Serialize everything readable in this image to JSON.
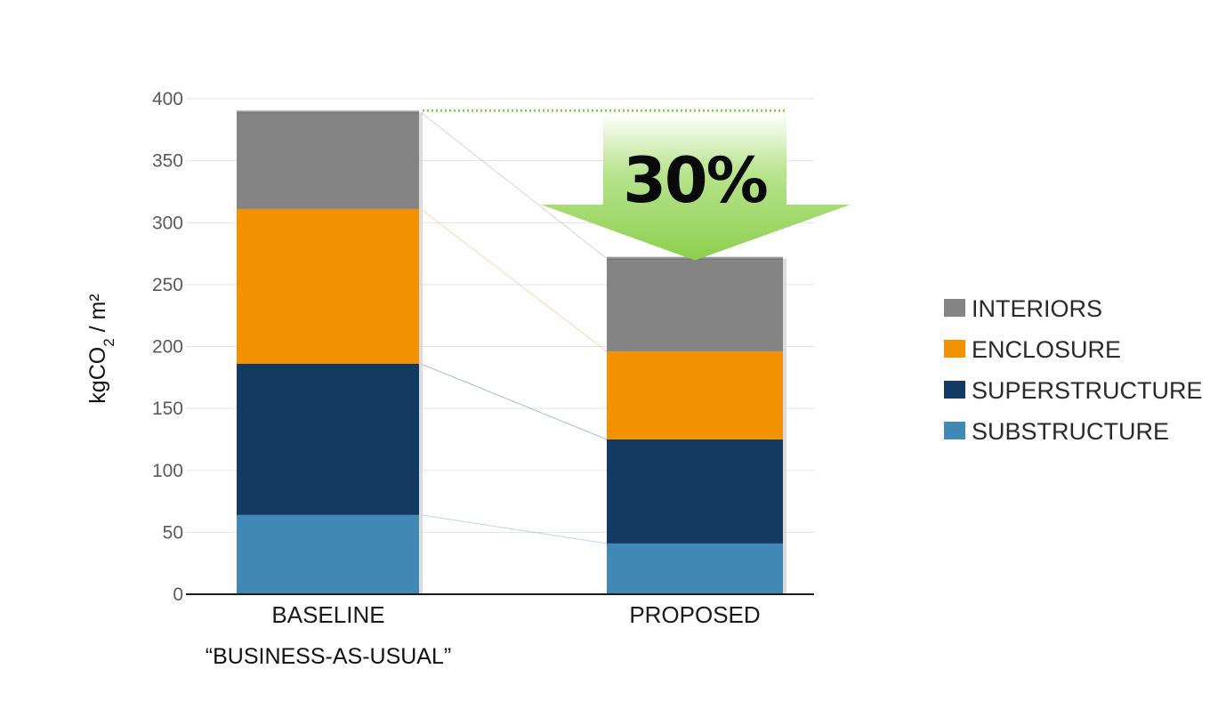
{
  "chart_data": {
    "type": "bar",
    "stacked": true,
    "categories": [
      "BASELINE",
      "PROPOSED"
    ],
    "category_sublabels": [
      "“BUSINESS-AS-USUAL”",
      ""
    ],
    "ylabel": "kgCO",
    "ylabel_subscript": "2",
    "ylabel_suffix": " / m²",
    "ylim": [
      0,
      400
    ],
    "yticks": [
      0,
      50,
      100,
      150,
      200,
      250,
      300,
      350,
      400
    ],
    "grid": true,
    "legend_position": "right",
    "series": [
      {
        "name": "SUBSTRUCTURE",
        "color": "#4189b5",
        "values": [
          64,
          41
        ]
      },
      {
        "name": "SUPERSTRUCTURE",
        "color": "#123a63",
        "values": [
          122,
          84
        ]
      },
      {
        "name": "ENCLOSURE",
        "color": "#f39200",
        "values": [
          125,
          71
        ]
      },
      {
        "name": "INTERIORS",
        "color": "#848484",
        "values": [
          78,
          75
        ]
      }
    ],
    "legend_order": [
      "INTERIORS",
      "ENCLOSURE",
      "SUPERSTRUCTURE",
      "SUBSTRUCTURE"
    ],
    "annotation": {
      "text": "30%",
      "color": "#8ccf4d"
    }
  }
}
